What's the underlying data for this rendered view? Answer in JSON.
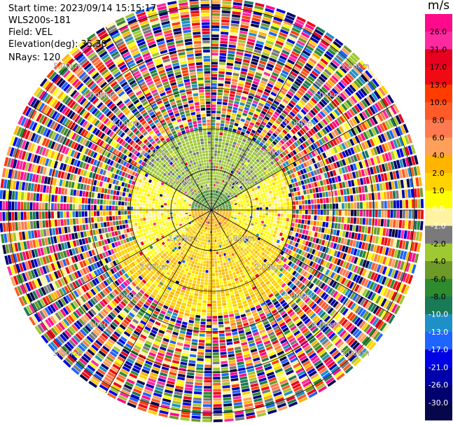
{
  "info": {
    "start_time": "Start time: 2023/09/14 15:15:17",
    "instrument": "WLS200s-181",
    "field": "Field: VEL",
    "elevation": "Elevation(deg): 35.30",
    "nrays": "NRays: 120"
  },
  "colorbar": {
    "unit": "m/s",
    "levels": [
      26.0,
      21.0,
      17.0,
      13.0,
      10.0,
      8.0,
      6.0,
      4.0,
      2.0,
      1.0,
      0.0,
      -1.0,
      -2.0,
      -4.0,
      -6.0,
      -8.0,
      -10.0,
      -13.0,
      -17.0,
      -21.0,
      -26.0,
      -30.0
    ],
    "labels": [
      "26.0",
      "21.0",
      "17.0",
      "13.0",
      "10.0",
      "8.0",
      "6.0",
      "4.0",
      "2.0",
      "1.0",
      "0.0",
      "-1.0",
      "-2.0",
      "-4.0",
      "-6.0",
      "-8.0",
      "-10.0",
      "-13.0",
      "-17.0",
      "-21.0",
      "-26.0",
      "-30.0"
    ],
    "colors": [
      "#ff0a8c",
      "#ff2aa0",
      "#e8001e",
      "#f00a14",
      "#ff3c00",
      "#ff5a28",
      "#ff7a50",
      "#ffa05a",
      "#ffb400",
      "#ffd200",
      "#ffff00",
      "#fff2a0",
      "#7a7a7a",
      "#9fc932",
      "#6e9a28",
      "#2e8b2e",
      "#1a7a55",
      "#1e90c8",
      "#1e64ff",
      "#0000e6",
      "#0000aa",
      "#00006e",
      "#06064a"
    ]
  },
  "chart_data": {
    "type": "ppi",
    "field": "VEL",
    "units": "m/s",
    "nrays": 120,
    "elevation_deg": 35.3,
    "range_rings_km": [
      1.0,
      2.0,
      3.0,
      4.0,
      5.0
    ],
    "ring_labels": [
      "1.00km",
      "2.00km",
      "3.00km",
      "4.00km",
      "5.00km"
    ],
    "max_range_km": 5.2,
    "spokes_deg": [
      0,
      30,
      60,
      90,
      120,
      150,
      180,
      210,
      240,
      270,
      300,
      330
    ],
    "regions": [
      {
        "r_km": [
          0.0,
          0.5
        ],
        "azimuth_deg": [
          270,
          90
        ],
        "velocity_ms": -6.0
      },
      {
        "r_km": [
          0.0,
          0.5
        ],
        "azimuth_deg": [
          90,
          270
        ],
        "velocity_ms": 3.0
      },
      {
        "r_km": [
          0.5,
          2.0
        ],
        "azimuth_deg": [
          300,
          60
        ],
        "velocity_ms": -2.5
      },
      {
        "r_km": [
          0.5,
          2.0
        ],
        "azimuth_deg": [
          60,
          120
        ],
        "velocity_ms": 0.5
      },
      {
        "r_km": [
          0.5,
          2.0
        ],
        "azimuth_deg": [
          120,
          230
        ],
        "velocity_ms": 1.5
      },
      {
        "r_km": [
          0.5,
          2.0
        ],
        "azimuth_deg": [
          230,
          300
        ],
        "velocity_ms": 0.3
      },
      {
        "r_km": [
          2.0,
          2.6
        ],
        "azimuth_deg": [
          130,
          250
        ],
        "velocity_ms": 1.5
      },
      {
        "r_km": [
          2.0,
          5.2
        ],
        "azimuth_deg": [
          0,
          360
        ],
        "velocity_ms": "noise"
      }
    ]
  }
}
